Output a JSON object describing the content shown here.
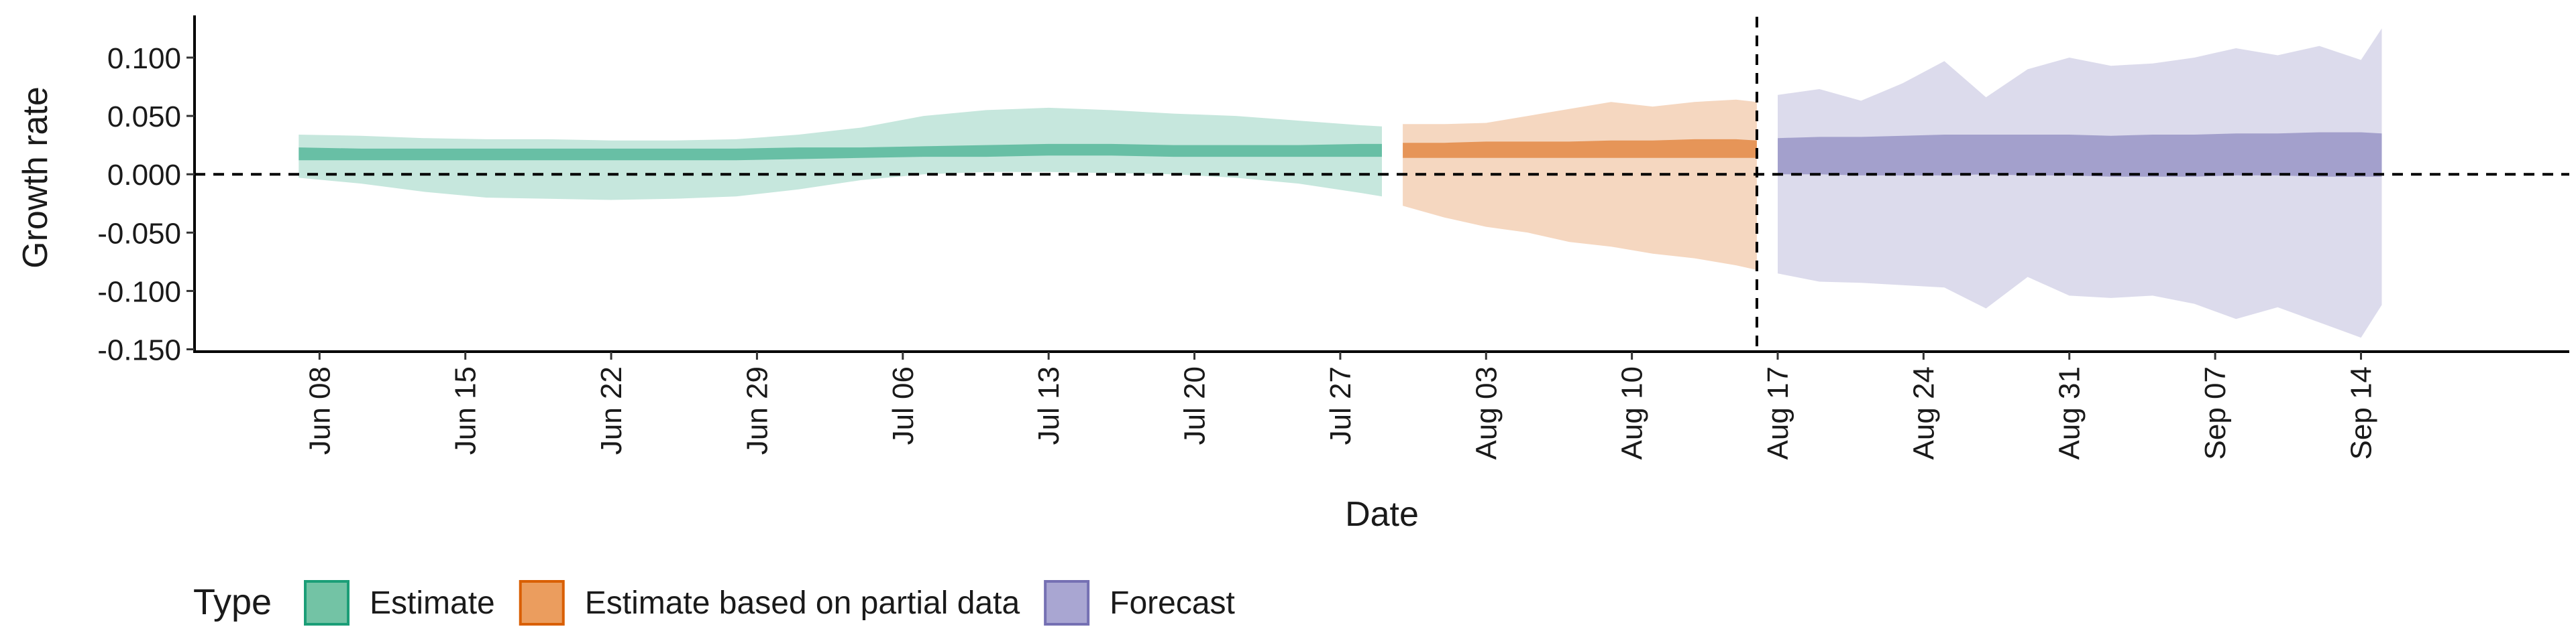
{
  "chart_data": {
    "type": "area",
    "xlabel": "Date",
    "ylabel": "Growth rate",
    "x_axis_type": "date",
    "x_ticks": [
      "2020-06-08",
      "2020-06-15",
      "2020-06-22",
      "2020-06-29",
      "2020-07-06",
      "2020-07-13",
      "2020-07-20",
      "2020-07-27",
      "2020-08-03",
      "2020-08-10",
      "2020-08-17",
      "2020-08-24",
      "2020-08-31",
      "2020-09-07",
      "2020-09-14"
    ],
    "x_tick_labels": [
      "Jun 08",
      "Jun 15",
      "Jun 22",
      "Jun 29",
      "Jul 06",
      "Jul 13",
      "Jul 20",
      "Jul 27",
      "Aug 03",
      "Aug 10",
      "Aug 17",
      "Aug 24",
      "Aug 31",
      "Sep 07",
      "Sep 14"
    ],
    "xlim": [
      "2020-06-02",
      "2020-09-24"
    ],
    "ylim": [
      -0.152,
      0.135
    ],
    "y_ticks": [
      0.1,
      0.05,
      0.0,
      -0.05,
      -0.1,
      -0.15
    ],
    "y_tick_labels": [
      "0.100",
      "0.050",
      "0.000",
      "-0.050",
      "-0.100",
      "-0.150"
    ],
    "hlines": [
      0.0
    ],
    "vlines": [
      "2020-08-16"
    ],
    "legend": {
      "title": "Type",
      "position": "bottom",
      "items": [
        {
          "label": "Estimate",
          "fill": "#73c3a5",
          "stroke": "#1b9e77"
        },
        {
          "label": "Estimate based on partial data",
          "fill": "#eb9d5e",
          "stroke": "#d95f02"
        },
        {
          "label": "Forecast",
          "fill": "#a9a6d2",
          "stroke": "#7570b3"
        }
      ]
    },
    "series": [
      {
        "name": "Estimate",
        "color": "#1b9e77",
        "x": [
          "2020-06-07",
          "2020-06-10",
          "2020-06-13",
          "2020-06-16",
          "2020-06-19",
          "2020-06-22",
          "2020-06-25",
          "2020-06-28",
          "2020-07-01",
          "2020-07-04",
          "2020-07-07",
          "2020-07-10",
          "2020-07-13",
          "2020-07-16",
          "2020-07-19",
          "2020-07-22",
          "2020-07-25",
          "2020-07-28",
          "2020-07-29"
        ],
        "upper90": [
          0.034,
          0.033,
          0.031,
          0.03,
          0.03,
          0.029,
          0.029,
          0.03,
          0.034,
          0.04,
          0.05,
          0.055,
          0.057,
          0.055,
          0.052,
          0.05,
          0.046,
          0.042,
          0.041
        ],
        "lower90": [
          -0.003,
          -0.008,
          -0.015,
          -0.02,
          -0.021,
          -0.022,
          -0.021,
          -0.019,
          -0.013,
          -0.005,
          0.0,
          0.002,
          0.002,
          0.001,
          0.0,
          -0.003,
          -0.008,
          -0.016,
          -0.019
        ],
        "upper50": [
          0.023,
          0.022,
          0.022,
          0.022,
          0.022,
          0.022,
          0.022,
          0.022,
          0.023,
          0.023,
          0.024,
          0.025,
          0.026,
          0.026,
          0.025,
          0.025,
          0.025,
          0.026,
          0.026
        ],
        "lower50": [
          0.012,
          0.012,
          0.012,
          0.012,
          0.012,
          0.012,
          0.012,
          0.012,
          0.013,
          0.014,
          0.015,
          0.015,
          0.016,
          0.016,
          0.015,
          0.015,
          0.015,
          0.015,
          0.015
        ]
      },
      {
        "name": "Estimate based on partial data",
        "color": "#d95f02",
        "x": [
          "2020-07-30",
          "2020-08-01",
          "2020-08-03",
          "2020-08-05",
          "2020-08-07",
          "2020-08-09",
          "2020-08-11",
          "2020-08-13",
          "2020-08-15",
          "2020-08-16"
        ],
        "upper90": [
          0.043,
          0.043,
          0.044,
          0.05,
          0.056,
          0.062,
          0.058,
          0.062,
          0.064,
          0.062
        ],
        "lower90": [
          -0.027,
          -0.037,
          -0.045,
          -0.05,
          -0.058,
          -0.062,
          -0.068,
          -0.072,
          -0.078,
          -0.082
        ],
        "upper50": [
          0.027,
          0.027,
          0.028,
          0.028,
          0.028,
          0.029,
          0.029,
          0.03,
          0.03,
          0.029
        ],
        "lower50": [
          0.014,
          0.014,
          0.014,
          0.014,
          0.014,
          0.014,
          0.014,
          0.014,
          0.014,
          0.014
        ]
      },
      {
        "name": "Forecast",
        "color": "#7570b3",
        "x": [
          "2020-08-17",
          "2020-08-19",
          "2020-08-21",
          "2020-08-23",
          "2020-08-25",
          "2020-08-27",
          "2020-08-29",
          "2020-08-31",
          "2020-09-02",
          "2020-09-04",
          "2020-09-06",
          "2020-09-08",
          "2020-09-10",
          "2020-09-12",
          "2020-09-14",
          "2020-09-15"
        ],
        "upper90": [
          0.068,
          0.073,
          0.063,
          0.078,
          0.097,
          0.066,
          0.09,
          0.1,
          0.093,
          0.095,
          0.1,
          0.108,
          0.102,
          0.11,
          0.098,
          0.125
        ],
        "lower90": [
          -0.085,
          -0.092,
          -0.093,
          -0.095,
          -0.097,
          -0.115,
          -0.088,
          -0.104,
          -0.106,
          -0.104,
          -0.111,
          -0.124,
          -0.114,
          -0.127,
          -0.14,
          -0.112
        ],
        "upper50": [
          0.031,
          0.032,
          0.032,
          0.033,
          0.034,
          0.034,
          0.034,
          0.034,
          0.033,
          0.034,
          0.034,
          0.035,
          0.035,
          0.036,
          0.036,
          0.035
        ],
        "lower50": [
          0.0,
          0.0,
          -0.001,
          -0.001,
          -0.001,
          0.0,
          -0.001,
          -0.001,
          -0.002,
          -0.002,
          -0.002,
          -0.001,
          -0.001,
          -0.002,
          -0.002,
          -0.002
        ]
      }
    ]
  }
}
